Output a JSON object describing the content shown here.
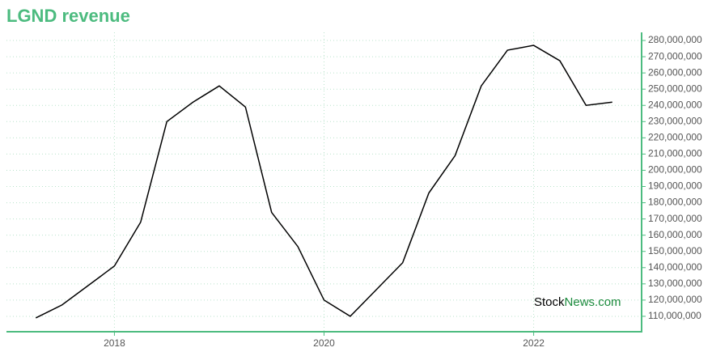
{
  "chart_data": {
    "type": "line",
    "title": "LGND revenue",
    "watermark": [
      "Stock",
      "News.com"
    ],
    "x": [
      2017.25,
      2017.5,
      2017.75,
      2018.0,
      2018.25,
      2018.5,
      2018.75,
      2019.0,
      2019.25,
      2019.5,
      2019.75,
      2020.0,
      2020.25,
      2020.5,
      2020.75,
      2021.0,
      2021.25,
      2021.5,
      2021.75,
      2022.0,
      2022.25,
      2022.5,
      2022.75
    ],
    "series": [
      {
        "name": "revenue",
        "color": "#000000",
        "values": [
          109000000,
          117000000,
          129000000,
          141000000,
          168000000,
          230000000,
          242000000,
          252000000,
          239000000,
          174000000,
          153000000,
          120000000,
          110000000,
          126500000,
          143000000,
          186000000,
          209000000,
          252000000,
          274000000,
          277000000,
          267500000,
          240000000,
          242000000
        ]
      }
    ],
    "xlim": [
      2016.97,
      2023.03
    ],
    "xticks": [
      2018,
      2020,
      2022
    ],
    "ylim": [
      100500000,
      285000000
    ],
    "yticks": [
      {
        "value": 110000000,
        "label": "110,000,000"
      },
      {
        "value": 120000000,
        "label": "120,000,000"
      },
      {
        "value": 130000000,
        "label": "130,000,000"
      },
      {
        "value": 140000000,
        "label": "140,000,000"
      },
      {
        "value": 150000000,
        "label": "150,000,000"
      },
      {
        "value": 160000000,
        "label": "160,000,000"
      },
      {
        "value": 170000000,
        "label": "170,000,000"
      },
      {
        "value": 180000000,
        "label": "180,000,000"
      },
      {
        "value": 190000000,
        "label": "190,000,000"
      },
      {
        "value": 200000000,
        "label": "200,000,000"
      },
      {
        "value": 210000000,
        "label": "210,000,000"
      },
      {
        "value": 220000000,
        "label": "220,000,000"
      },
      {
        "value": 230000000,
        "label": "230,000,000"
      },
      {
        "value": 240000000,
        "label": "240,000,000"
      },
      {
        "value": 250000000,
        "label": "250,000,000"
      },
      {
        "value": 260000000,
        "label": "260,000,000"
      },
      {
        "value": 270000000,
        "label": "270,000,000"
      },
      {
        "value": 280000000,
        "label": "280,000,000"
      }
    ],
    "grid": true,
    "axis_color": "#4cbb7f"
  }
}
